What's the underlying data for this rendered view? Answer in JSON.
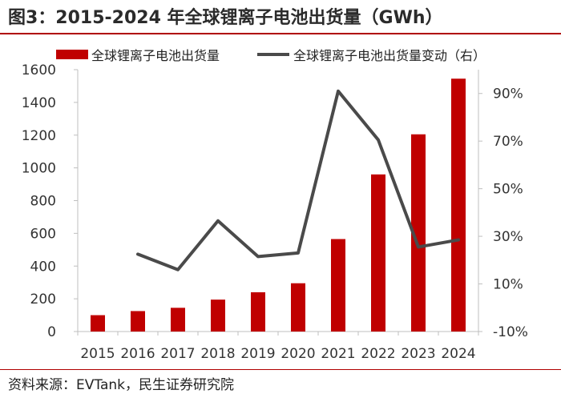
{
  "title": "图3：2015-2024 年全球锂离子电池出货量（GWh）",
  "source": "资料来源：EVTank，民生证券研究院",
  "chart_data": {
    "type": "bar",
    "categories": [
      "2015",
      "2016",
      "2017",
      "2018",
      "2019",
      "2020",
      "2021",
      "2022",
      "2023",
      "2024"
    ],
    "series": [
      {
        "name": "全球锂离子电池出货量",
        "kind": "bar",
        "axis": "left",
        "color": "#c00000",
        "values": [
          100,
          125,
          145,
          195,
          240,
          295,
          565,
          960,
          1205,
          1545
        ]
      },
      {
        "name": "全球锂离子电池出货量变动（右）",
        "kind": "line",
        "axis": "right",
        "color": "#4a4a4a",
        "values": [
          null,
          22.5,
          16.0,
          36.5,
          21.5,
          23.0,
          91.0,
          70.5,
          25.5,
          28.5
        ]
      }
    ],
    "left_axis": {
      "min": 0,
      "max": 1600,
      "ticks": [
        0,
        200,
        400,
        600,
        800,
        1000,
        1200,
        1400,
        1600
      ]
    },
    "right_axis": {
      "min": -10,
      "max": 100,
      "ticks": [
        -10,
        10,
        30,
        50,
        70,
        90
      ],
      "tick_labels": [
        "-10%",
        "10%",
        "30%",
        "50%",
        "70%",
        "90%"
      ]
    },
    "legend_position": "top"
  }
}
